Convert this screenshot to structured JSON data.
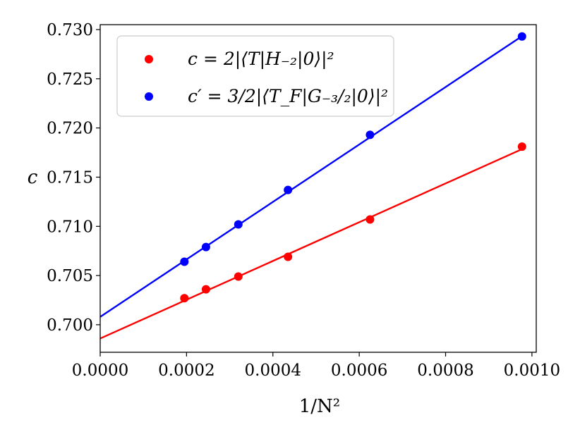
{
  "chart_data": {
    "type": "scatter",
    "xlabel": "1/N²",
    "ylabel": "c",
    "xlim": [
      0.0,
      0.00101
    ],
    "ylim": [
      0.6972,
      0.7305
    ],
    "x_ticks": [
      "0.0000",
      "0.0002",
      "0.0004",
      "0.0006",
      "0.0008",
      "0.0010"
    ],
    "y_ticks": [
      "0.700",
      "0.705",
      "0.710",
      "0.715",
      "0.720",
      "0.725",
      "0.730"
    ],
    "legend_position": "top-left",
    "grid": false,
    "series": [
      {
        "name": "c = 2|⟨T|H₋₂|0⟩|²",
        "color": "#ff0000",
        "points": [
          {
            "x": 0.000195,
            "y": 0.7027
          },
          {
            "x": 0.000245,
            "y": 0.7036
          },
          {
            "x": 0.00032,
            "y": 0.7049
          },
          {
            "x": 0.000435,
            "y": 0.7069
          },
          {
            "x": 0.000625,
            "y": 0.7107
          },
          {
            "x": 0.000977,
            "y": 0.7181
          }
        ],
        "fit": {
          "intercept": 0.6986,
          "slope": 19.7
        }
      },
      {
        "name": "c′ = 3/2|⟨T_F|G₋₃/₂|0⟩|²",
        "color": "#0000ff",
        "points": [
          {
            "x": 0.000195,
            "y": 0.7064
          },
          {
            "x": 0.000245,
            "y": 0.7079
          },
          {
            "x": 0.00032,
            "y": 0.7102
          },
          {
            "x": 0.000435,
            "y": 0.7137
          },
          {
            "x": 0.000625,
            "y": 0.7193
          },
          {
            "x": 0.000977,
            "y": 0.7293
          }
        ],
        "fit": {
          "intercept": 0.7008,
          "slope": 29.2
        }
      }
    ]
  }
}
